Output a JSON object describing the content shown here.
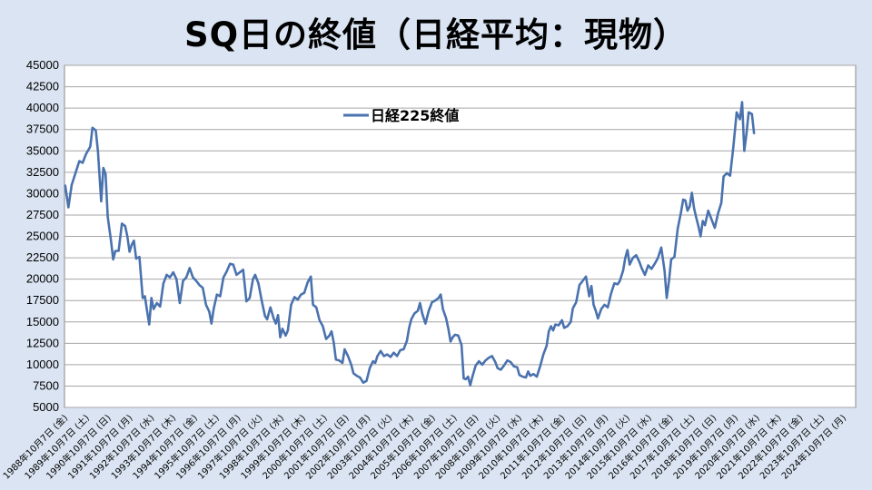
{
  "chart_data": {
    "type": "line",
    "title": "SQ日の終値（日経平均：現物）",
    "ylim": [
      5000,
      45000
    ],
    "y_ticks": [
      5000,
      7500,
      10000,
      12500,
      15000,
      17500,
      20000,
      22500,
      25000,
      27500,
      30000,
      32500,
      35000,
      37500,
      40000,
      42500,
      45000
    ],
    "y_tick_labels": [
      "5000",
      "7500",
      "10000",
      "12500",
      "15000",
      "17500",
      "20000",
      "22500",
      "25000",
      "27500",
      "30000",
      "32500",
      "35000",
      "37500",
      "40000",
      "42500",
      "45000"
    ],
    "x_range": [
      1988.77,
      2025.0
    ],
    "x_tick_labels": [
      "1988年10月7日 (金)",
      "1989年10月7日 (土)",
      "1990年10月7日 (日)",
      "1991年10月7日 (月)",
      "1992年10月7日 (水)",
      "1993年10月7日 (木)",
      "1994年10月7日 (金)",
      "1995年10月7日 (土)",
      "1996年10月7日 (月)",
      "1997年10月7日 (火)",
      "1998年10月7日 (水)",
      "1999年10月7日 (木)",
      "2000年10月7日 (土)",
      "2001年10月7日 (日)",
      "2002年10月7日 (月)",
      "2003年10月7日 (火)",
      "2004年10月7日 (木)",
      "2005年10月7日 (金)",
      "2006年10月7日 (土)",
      "2007年10月7日 (日)",
      "2008年10月7日 (火)",
      "2009年10月7日 (水)",
      "2010年10月7日 (木)",
      "2011年10月7日 (金)",
      "2012年10月7日 (日)",
      "2013年10月7日 (月)",
      "2014年10月7日 (火)",
      "2015年10月7日 (水)",
      "2016年10月7日 (金)",
      "2017年10月7日 (土)",
      "2018年10月7日 (日)",
      "2019年10月7日 (月)",
      "2020年10月7日 (水)",
      "2021年10月7日 (木)",
      "2022年10月7日 (金)",
      "2023年10月7日 (土)",
      "2024年10月7日 (月)"
    ],
    "grid": true,
    "legend_position": "top-center",
    "series": [
      {
        "name": "日経225終値",
        "color": "#4a72ae",
        "points": [
          [
            1988.8,
            31000
          ],
          [
            1988.95,
            28400
          ],
          [
            1989.1,
            31000
          ],
          [
            1989.25,
            32200
          ],
          [
            1989.45,
            33800
          ],
          [
            1989.6,
            33600
          ],
          [
            1989.75,
            34600
          ],
          [
            1989.95,
            35500
          ],
          [
            1990.05,
            37700
          ],
          [
            1990.2,
            37400
          ],
          [
            1990.3,
            35000
          ],
          [
            1990.45,
            29100
          ],
          [
            1990.55,
            33000
          ],
          [
            1990.65,
            32300
          ],
          [
            1990.75,
            27300
          ],
          [
            1990.9,
            24500
          ],
          [
            1991.0,
            22300
          ],
          [
            1991.1,
            23300
          ],
          [
            1991.25,
            23300
          ],
          [
            1991.4,
            26500
          ],
          [
            1991.55,
            26200
          ],
          [
            1991.65,
            25000
          ],
          [
            1991.75,
            23200
          ],
          [
            1991.85,
            24000
          ],
          [
            1991.95,
            24500
          ],
          [
            1992.05,
            22400
          ],
          [
            1992.2,
            22600
          ],
          [
            1992.35,
            17800
          ],
          [
            1992.45,
            18000
          ],
          [
            1992.55,
            16300
          ],
          [
            1992.65,
            14700
          ],
          [
            1992.75,
            17800
          ],
          [
            1992.85,
            16500
          ],
          [
            1993.0,
            17200
          ],
          [
            1993.15,
            16800
          ],
          [
            1993.3,
            19500
          ],
          [
            1993.45,
            20500
          ],
          [
            1993.6,
            20200
          ],
          [
            1993.75,
            20800
          ],
          [
            1993.9,
            20000
          ],
          [
            1994.05,
            17200
          ],
          [
            1994.2,
            19800
          ],
          [
            1994.35,
            20200
          ],
          [
            1994.5,
            21300
          ],
          [
            1994.65,
            20200
          ],
          [
            1994.8,
            19800
          ],
          [
            1994.95,
            19300
          ],
          [
            1995.1,
            19000
          ],
          [
            1995.25,
            17000
          ],
          [
            1995.4,
            16200
          ],
          [
            1995.5,
            14800
          ],
          [
            1995.6,
            16500
          ],
          [
            1995.75,
            18200
          ],
          [
            1995.9,
            18000
          ],
          [
            1996.05,
            20200
          ],
          [
            1996.2,
            20900
          ],
          [
            1996.35,
            21800
          ],
          [
            1996.5,
            21700
          ],
          [
            1996.65,
            20500
          ],
          [
            1996.8,
            20800
          ],
          [
            1996.95,
            21100
          ],
          [
            1997.1,
            17400
          ],
          [
            1997.25,
            17800
          ],
          [
            1997.4,
            20000
          ],
          [
            1997.5,
            20500
          ],
          [
            1997.65,
            19500
          ],
          [
            1997.8,
            17500
          ],
          [
            1997.95,
            15700
          ],
          [
            1998.05,
            15300
          ],
          [
            1998.2,
            16700
          ],
          [
            1998.35,
            15400
          ],
          [
            1998.45,
            14800
          ],
          [
            1998.55,
            15800
          ],
          [
            1998.65,
            13200
          ],
          [
            1998.75,
            14200
          ],
          [
            1998.9,
            13400
          ],
          [
            1999.0,
            14000
          ],
          [
            1999.15,
            17000
          ],
          [
            1999.3,
            17900
          ],
          [
            1999.45,
            17600
          ],
          [
            1999.6,
            18200
          ],
          [
            1999.75,
            18400
          ],
          [
            1999.9,
            19600
          ],
          [
            2000.05,
            20300
          ],
          [
            2000.15,
            17000
          ],
          [
            2000.3,
            16700
          ],
          [
            2000.45,
            15200
          ],
          [
            2000.6,
            14500
          ],
          [
            2000.75,
            13000
          ],
          [
            2000.9,
            13400
          ],
          [
            2001.0,
            13900
          ],
          [
            2001.1,
            12600
          ],
          [
            2001.2,
            10600
          ],
          [
            2001.35,
            10500
          ],
          [
            2001.5,
            10200
          ],
          [
            2001.6,
            11800
          ],
          [
            2001.75,
            11000
          ],
          [
            2001.9,
            10000
          ],
          [
            2002.0,
            9000
          ],
          [
            2002.15,
            8700
          ],
          [
            2002.3,
            8500
          ],
          [
            2002.45,
            7900
          ],
          [
            2002.6,
            8100
          ],
          [
            2002.75,
            9600
          ],
          [
            2002.9,
            10400
          ],
          [
            2003.0,
            10200
          ],
          [
            2003.1,
            11000
          ],
          [
            2003.25,
            11600
          ],
          [
            2003.4,
            11000
          ],
          [
            2003.55,
            11200
          ],
          [
            2003.7,
            10900
          ],
          [
            2003.85,
            11400
          ],
          [
            2004.0,
            11000
          ],
          [
            2004.15,
            11700
          ],
          [
            2004.3,
            11800
          ],
          [
            2004.45,
            12800
          ],
          [
            2004.55,
            14300
          ],
          [
            2004.65,
            15300
          ],
          [
            2004.8,
            16000
          ],
          [
            2004.95,
            16300
          ],
          [
            2005.05,
            17200
          ],
          [
            2005.15,
            16000
          ],
          [
            2005.3,
            14800
          ],
          [
            2005.45,
            16300
          ],
          [
            2005.6,
            17300
          ],
          [
            2005.75,
            17500
          ],
          [
            2005.9,
            17800
          ],
          [
            2006.0,
            18200
          ],
          [
            2006.1,
            16500
          ],
          [
            2006.25,
            15400
          ],
          [
            2006.35,
            14200
          ],
          [
            2006.45,
            12700
          ],
          [
            2006.55,
            13200
          ],
          [
            2006.65,
            13500
          ],
          [
            2006.8,
            13400
          ],
          [
            2006.95,
            12300
          ],
          [
            2007.05,
            8400
          ],
          [
            2007.15,
            8300
          ],
          [
            2007.25,
            8600
          ],
          [
            2007.35,
            7600
          ],
          [
            2007.45,
            8600
          ],
          [
            2007.6,
            9900
          ],
          [
            2007.75,
            10400
          ],
          [
            2007.9,
            10000
          ],
          [
            2008.05,
            10500
          ],
          [
            2008.2,
            10800
          ],
          [
            2008.35,
            11000
          ],
          [
            2008.5,
            10300
          ],
          [
            2008.6,
            9600
          ],
          [
            2008.75,
            9400
          ],
          [
            2008.9,
            9900
          ],
          [
            2009.05,
            10500
          ],
          [
            2009.2,
            10300
          ],
          [
            2009.35,
            9800
          ],
          [
            2009.5,
            9700
          ],
          [
            2009.6,
            8800
          ],
          [
            2009.75,
            8600
          ],
          [
            2009.9,
            8500
          ],
          [
            2010.0,
            9200
          ],
          [
            2010.1,
            8700
          ],
          [
            2010.25,
            8900
          ],
          [
            2010.4,
            8600
          ],
          [
            2010.55,
            9800
          ],
          [
            2010.7,
            11200
          ],
          [
            2010.85,
            12200
          ],
          [
            2010.95,
            13900
          ],
          [
            2011.05,
            14500
          ],
          [
            2011.15,
            14000
          ],
          [
            2011.25,
            14700
          ],
          [
            2011.4,
            14600
          ],
          [
            2011.55,
            15200
          ],
          [
            2011.65,
            14300
          ],
          [
            2011.8,
            14500
          ],
          [
            2011.95,
            15000
          ],
          [
            2012.05,
            16600
          ],
          [
            2012.2,
            17300
          ],
          [
            2012.35,
            19300
          ],
          [
            2012.5,
            19800
          ],
          [
            2012.65,
            20300
          ],
          [
            2012.8,
            18000
          ],
          [
            2012.9,
            19200
          ],
          [
            2013.0,
            17000
          ],
          [
            2013.1,
            16300
          ],
          [
            2013.2,
            15400
          ],
          [
            2013.35,
            16500
          ],
          [
            2013.5,
            17000
          ],
          [
            2013.65,
            16700
          ],
          [
            2013.8,
            18300
          ],
          [
            2013.95,
            19500
          ],
          [
            2014.1,
            19400
          ],
          [
            2014.2,
            19800
          ],
          [
            2014.35,
            21000
          ],
          [
            2014.45,
            22500
          ],
          [
            2014.55,
            23400
          ],
          [
            2014.65,
            21700
          ],
          [
            2014.8,
            22500
          ],
          [
            2014.95,
            22800
          ],
          [
            2015.1,
            22000
          ],
          [
            2015.2,
            21300
          ],
          [
            2015.35,
            20500
          ],
          [
            2015.5,
            21600
          ],
          [
            2015.65,
            21200
          ],
          [
            2015.8,
            21800
          ],
          [
            2015.95,
            22500
          ],
          [
            2016.1,
            23700
          ],
          [
            2016.25,
            21000
          ],
          [
            2016.35,
            17800
          ],
          [
            2016.45,
            19800
          ],
          [
            2016.55,
            22300
          ],
          [
            2016.7,
            22600
          ],
          [
            2016.85,
            25900
          ],
          [
            2017.0,
            27800
          ],
          [
            2017.1,
            29300
          ],
          [
            2017.2,
            29200
          ],
          [
            2017.3,
            28000
          ],
          [
            2017.4,
            28500
          ],
          [
            2017.5,
            30100
          ],
          [
            2017.6,
            28300
          ],
          [
            2017.7,
            27200
          ],
          [
            2017.8,
            26200
          ],
          [
            2017.9,
            25000
          ],
          [
            2018.0,
            26800
          ],
          [
            2018.1,
            26300
          ],
          [
            2018.25,
            28000
          ],
          [
            2018.4,
            27000
          ],
          [
            2018.55,
            26000
          ],
          [
            2018.7,
            27700
          ],
          [
            2018.85,
            28900
          ],
          [
            2018.95,
            32000
          ],
          [
            2019.1,
            32400
          ],
          [
            2019.25,
            32100
          ],
          [
            2019.4,
            35500
          ],
          [
            2019.55,
            39500
          ],
          [
            2019.7,
            38700
          ],
          [
            2019.8,
            40700
          ],
          [
            2019.9,
            35000
          ],
          [
            2020.0,
            37000
          ],
          [
            2020.1,
            39500
          ],
          [
            2020.25,
            39300
          ],
          [
            2020.35,
            37000
          ]
        ]
      }
    ]
  }
}
